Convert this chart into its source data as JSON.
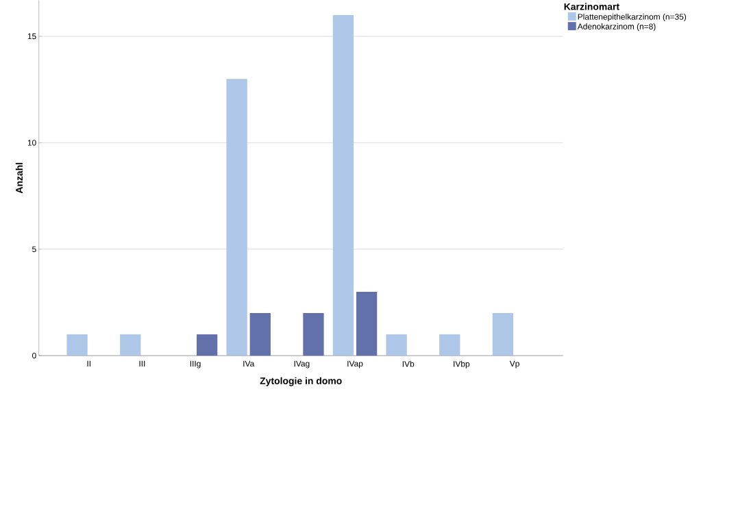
{
  "chart_data": {
    "type": "bar",
    "xlabel": "Zytologie in domo",
    "ylabel": "Anzahl",
    "legend_title": "Karzinomart",
    "categories": [
      "II",
      "III",
      "IIIg",
      "IVa",
      "IVag",
      "IVap",
      "IVb",
      "IVbp",
      "Vp"
    ],
    "series": [
      {
        "name": "Plattenepithelkarzinom (n=35)",
        "color": "#aec7e8",
        "values": [
          1,
          1,
          0,
          13,
          0,
          16,
          1,
          1,
          2
        ]
      },
      {
        "name": "Adenokarzinom (n=8)",
        "color": "#6371ab",
        "values": [
          0,
          0,
          1,
          2,
          2,
          3,
          0,
          0,
          0
        ]
      }
    ],
    "ylim": [
      0,
      16.7
    ],
    "yticks": [
      0,
      5,
      10,
      15
    ],
    "grid": "y",
    "legend": "top right"
  }
}
